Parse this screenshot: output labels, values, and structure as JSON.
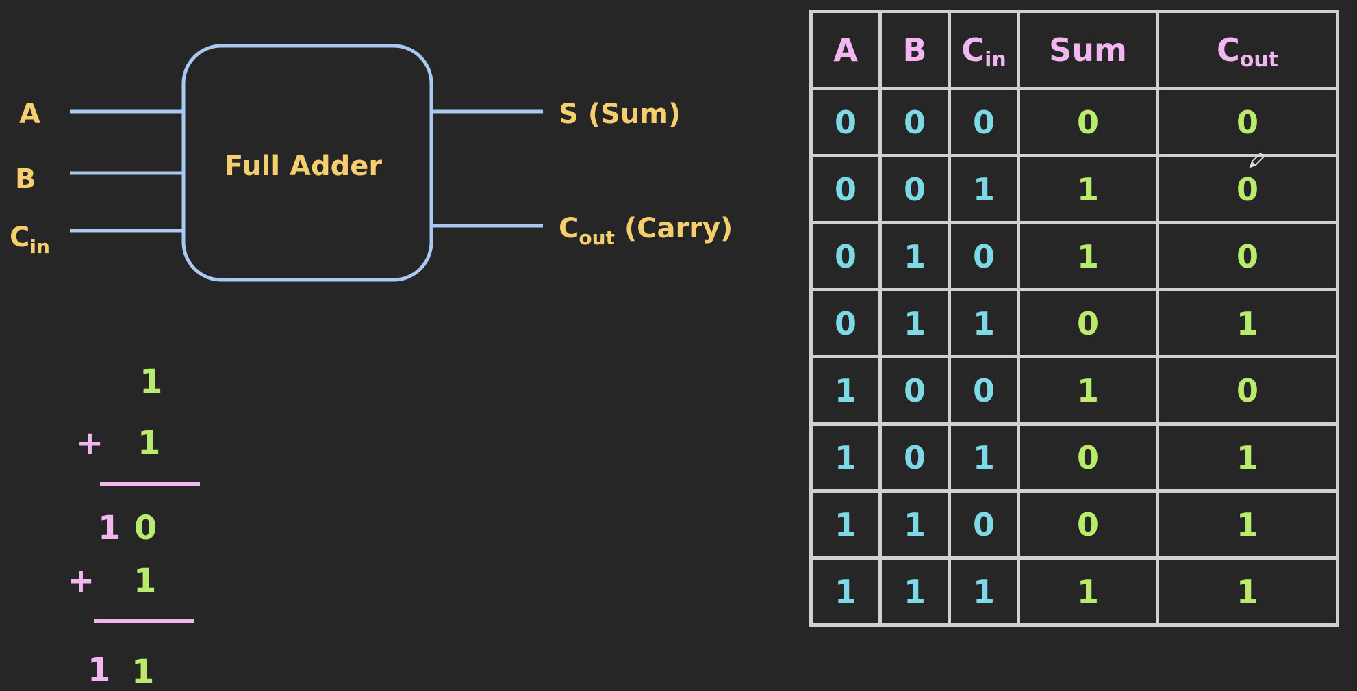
{
  "diagram": {
    "block_label": "Full Adder",
    "inputs": [
      {
        "main": "A",
        "sub": ""
      },
      {
        "main": "B",
        "sub": ""
      },
      {
        "main": "C",
        "sub": "in"
      }
    ],
    "outputs": [
      {
        "main": "S",
        "sub": "",
        "suffix": " (Sum)"
      },
      {
        "main": "C",
        "sub": "out",
        "suffix": " (Carry)"
      }
    ]
  },
  "addition": {
    "step1": {
      "top": "1",
      "operator": "+",
      "addend": "1",
      "result_carry": "1",
      "result_digit": "0"
    },
    "step2": {
      "operator": "+",
      "addend": "1",
      "result_carry": "1",
      "result_digit": "1"
    }
  },
  "truth_table": {
    "headers": [
      {
        "main": "A",
        "sub": ""
      },
      {
        "main": "B",
        "sub": ""
      },
      {
        "main": "C",
        "sub": "in"
      },
      {
        "main": "Sum",
        "sub": ""
      },
      {
        "main": "C",
        "sub": "out"
      }
    ],
    "rows": [
      [
        "0",
        "0",
        "0",
        "0",
        "0"
      ],
      [
        "0",
        "0",
        "1",
        "1",
        "0"
      ],
      [
        "0",
        "1",
        "0",
        "1",
        "0"
      ],
      [
        "0",
        "1",
        "1",
        "0",
        "1"
      ],
      [
        "1",
        "0",
        "0",
        "1",
        "0"
      ],
      [
        "1",
        "0",
        "1",
        "0",
        "1"
      ],
      [
        "1",
        "1",
        "0",
        "0",
        "1"
      ],
      [
        "1",
        "1",
        "1",
        "1",
        "1"
      ]
    ]
  },
  "colors": {
    "background": "#262626",
    "label": "#f5cf6e",
    "wire": "#a9c8f2",
    "header": "#f2b6f0",
    "input_values": "#7dd9e6",
    "output_values": "#b9ec6c",
    "grid": "#d0d0d0"
  },
  "cursor_icon": "pencil-icon"
}
